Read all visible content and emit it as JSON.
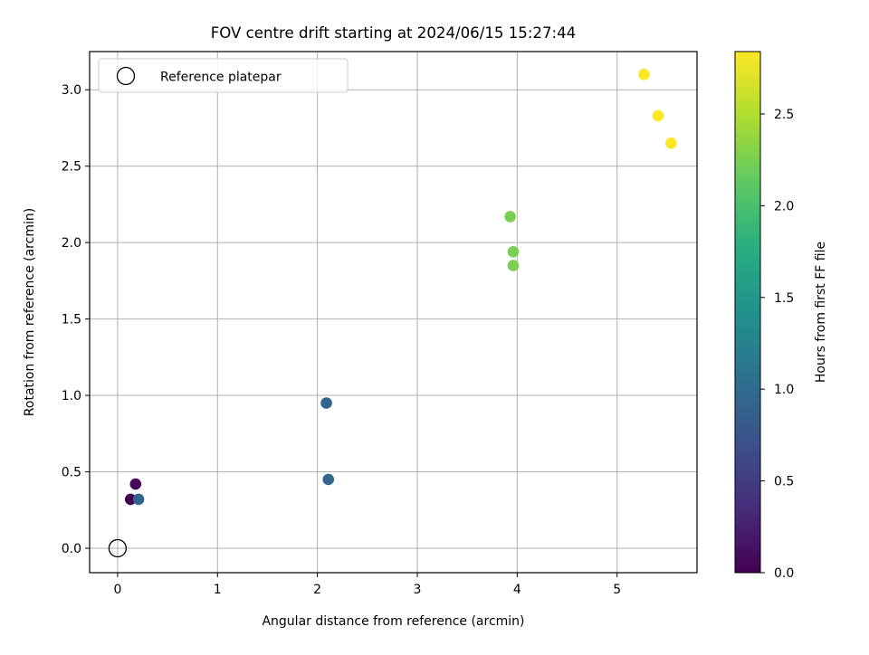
{
  "chart_data": {
    "type": "scatter",
    "title": "FOV centre drift starting at 2024/06/15 15:27:44",
    "xlabel": "Angular distance from reference (arcmin)",
    "ylabel": "Rotation from reference (arcmin)",
    "xlim": [
      -0.28,
      5.8
    ],
    "ylim": [
      -0.16,
      3.25
    ],
    "grid": true,
    "x_ticks": [
      0,
      1,
      2,
      3,
      4,
      5
    ],
    "x_tick_labels": [
      "0",
      "1",
      "2",
      "3",
      "4",
      "5"
    ],
    "y_ticks": [
      0.0,
      0.5,
      1.0,
      1.5,
      2.0,
      2.5,
      3.0
    ],
    "y_tick_labels": [
      "0.0",
      "0.5",
      "1.0",
      "1.5",
      "2.0",
      "2.5",
      "3.0"
    ],
    "legend": {
      "placement": "top-left",
      "label": "Reference platepar"
    },
    "reference": {
      "x": 0,
      "y": 0,
      "label": "Reference platepar"
    },
    "points": [
      {
        "x": 0.13,
        "y": 0.32,
        "hours": 0.0
      },
      {
        "x": 0.18,
        "y": 0.42,
        "hours": 0.05
      },
      {
        "x": 0.21,
        "y": 0.32,
        "hours": 0.92
      },
      {
        "x": 2.09,
        "y": 0.95,
        "hours": 0.92
      },
      {
        "x": 2.11,
        "y": 0.45,
        "hours": 0.93
      },
      {
        "x": 3.93,
        "y": 2.17,
        "hours": 2.25
      },
      {
        "x": 3.96,
        "y": 1.94,
        "hours": 2.25
      },
      {
        "x": 3.96,
        "y": 1.85,
        "hours": 2.26
      },
      {
        "x": 5.27,
        "y": 3.1,
        "hours": 2.84
      },
      {
        "x": 5.41,
        "y": 2.83,
        "hours": 2.84
      },
      {
        "x": 5.54,
        "y": 2.65,
        "hours": 2.84
      }
    ],
    "colorbar": {
      "label": "Hours from first FF file",
      "colormap": "viridis",
      "range": [
        0.0,
        2.84
      ],
      "ticks": [
        0.0,
        0.5,
        1.0,
        1.5,
        2.0,
        2.5
      ],
      "tick_labels": [
        "0.0",
        "0.5",
        "1.0",
        "1.5",
        "2.0",
        "2.5"
      ]
    }
  }
}
